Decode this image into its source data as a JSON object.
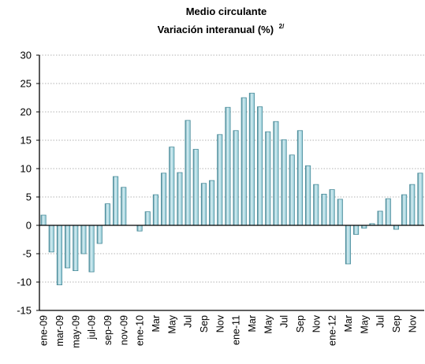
{
  "chart_data": {
    "type": "bar",
    "title": "Medio circulante",
    "subtitle": "Variación interanual (%)",
    "subtitle_superscript": "2/",
    "xlabel": "",
    "ylabel": "",
    "ylim": [
      -15,
      30
    ],
    "yticks": [
      30,
      25,
      20,
      15,
      10,
      5,
      0,
      -5,
      -10,
      -15
    ],
    "grid": true,
    "legend": "none",
    "colors": {
      "bar_fill": "#8fc9d5",
      "bar_edge": "#4a8c9a",
      "bar_highlight": "#d6eef3",
      "grid": "#b3b3b3"
    },
    "x_tick_labels": [
      "ene-09",
      "mar-09",
      "may-09",
      "jul-09",
      "sep-09",
      "nov-09",
      "ene-10",
      "Mar",
      "May",
      "Jul",
      "Sep",
      "Nov",
      "ene-11",
      "Mar",
      "May",
      "Jul",
      "Sep",
      "Nov",
      "ene-12",
      "Mar",
      "May",
      "Jul",
      "Sep",
      "Nov"
    ],
    "categories": [
      "ene-09",
      "feb-09",
      "mar-09",
      "abr-09",
      "may-09",
      "jun-09",
      "jul-09",
      "ago-09",
      "sep-09",
      "oct-09",
      "nov-09",
      "dic-09",
      "ene-10",
      "feb-10",
      "mar-10",
      "abr-10",
      "may-10",
      "jun-10",
      "jul-10",
      "ago-10",
      "sep-10",
      "oct-10",
      "nov-10",
      "dic-10",
      "ene-11",
      "feb-11",
      "mar-11",
      "abr-11",
      "may-11",
      "jun-11",
      "jul-11",
      "ago-11",
      "sep-11",
      "oct-11",
      "nov-11",
      "dic-11",
      "ene-12",
      "feb-12",
      "mar-12",
      "abr-12",
      "may-12",
      "jun-12",
      "jul-12",
      "ago-12",
      "sep-12",
      "oct-12",
      "nov-12",
      "dic-12"
    ],
    "values": [
      1.8,
      -4.7,
      -10.5,
      -7.5,
      -8.0,
      -5.0,
      -8.2,
      -3.2,
      3.8,
      8.6,
      6.7,
      0.0,
      -1.0,
      2.4,
      5.4,
      9.2,
      13.8,
      9.3,
      18.5,
      13.4,
      7.4,
      7.9,
      16.0,
      20.8,
      16.7,
      22.5,
      23.3,
      20.9,
      16.5,
      18.3,
      15.1,
      12.4,
      16.7,
      10.5,
      7.2,
      5.5,
      6.3,
      4.6,
      -6.8,
      -1.6,
      -0.5,
      0.3,
      2.5,
      4.7,
      -0.7,
      5.4,
      7.2,
      9.2
    ]
  }
}
